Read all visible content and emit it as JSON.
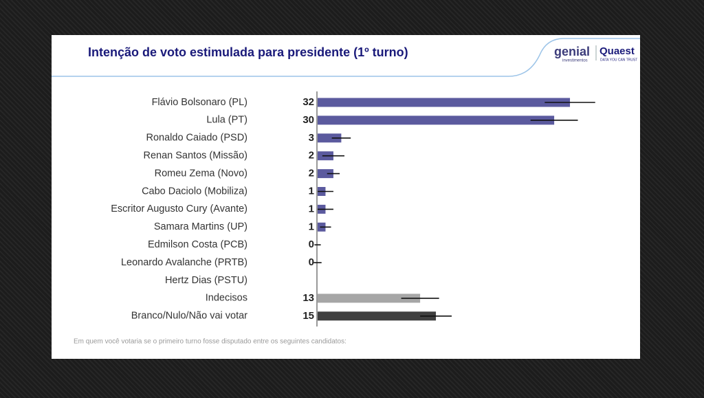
{
  "chart_data": {
    "type": "hbar",
    "title": "Intenção de voto estimulada para presidente (1º turno)",
    "categories": [
      "Flávio Bolsonaro (PL)",
      "Lula (PT)",
      "Ronaldo Caiado (PSD)",
      "Renan Santos (Missão)",
      "Romeu Zema (Novo)",
      "Cabo Daciolo (Mobiliza)",
      "Escritor Augusto Cury (Avante)",
      "Samara Martins (UP)",
      "Edmilson Costa (PCB)",
      "Leonardo Avalanche (PRTB)",
      "Hertz Dias (PSTU)",
      "Indecisos",
      "Branco/Nulo/Não vai votar"
    ],
    "values": [
      32,
      30,
      3,
      2,
      2,
      1,
      1,
      1,
      0,
      0,
      null,
      13,
      15
    ],
    "errors": [
      3.2,
      3,
      1.2,
      1.4,
      0.8,
      1,
      1,
      0.7,
      0.4,
      0.5,
      null,
      2.4,
      2
    ],
    "colors": [
      "#5b5a9e",
      "#5b5a9e",
      "#5b5a9e",
      "#5b5a9e",
      "#5b5a9e",
      "#5b5a9e",
      "#5b5a9e",
      "#5b5a9e",
      "#5b5a9e",
      "#5b5a9e",
      "#5b5a9e",
      "#a6a6a6",
      "#404040"
    ],
    "footnote": "Em quem você votaria se o primeiro turno fosse disputado entre os seguintes candidatos:",
    "logos": {
      "genial": "genial",
      "genial_sub": "investimentos",
      "quaest": "Quaest",
      "quaest_sub": "DATA YOU CAN TRUST"
    }
  }
}
